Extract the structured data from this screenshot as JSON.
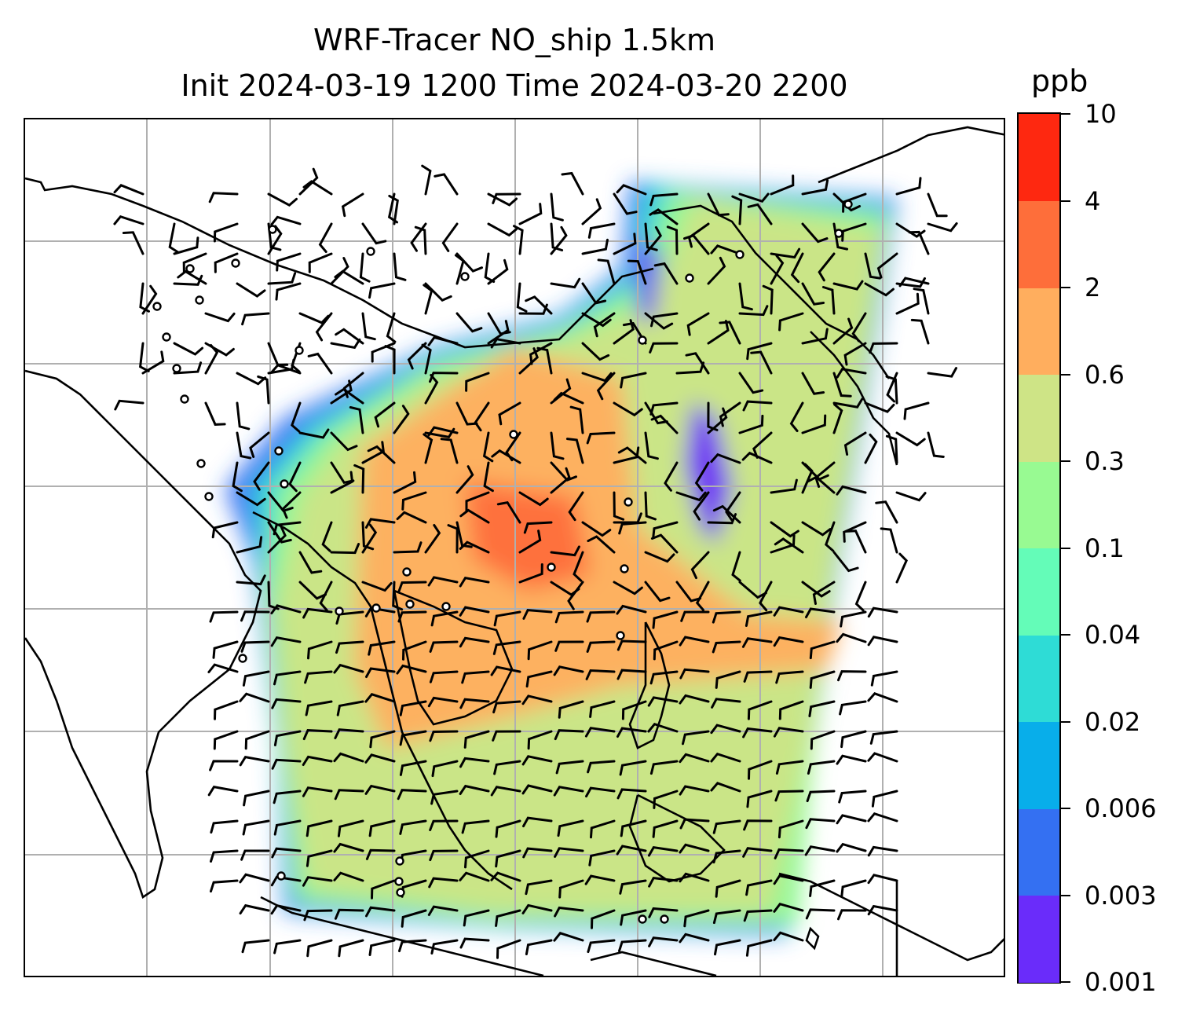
{
  "title_line1": "WRF-Tracer NO_ship 1.5km",
  "title_line2": "Init 2024-03-19 1200 Time 2024-03-20 2200",
  "colorbar": {
    "unit": "ppb",
    "ticks": [
      "0.001",
      "0.003",
      "0.006",
      "0.02",
      "0.04",
      "0.1",
      "0.3",
      "0.6",
      "2",
      "4",
      "10"
    ],
    "colors": [
      "#6a2cfa",
      "#3470f2",
      "#08aeea",
      "#2edcd6",
      "#64fcb8",
      "#98fa92",
      "#cee486",
      "#ffae5e",
      "#fe6e3a",
      "#fe2810"
    ]
  },
  "map": {
    "layers": [
      "coastlines",
      "gridlines",
      "tracer_shading",
      "wind_barbs",
      "station_markers"
    ],
    "grid_color": "#b0b0b0"
  }
}
